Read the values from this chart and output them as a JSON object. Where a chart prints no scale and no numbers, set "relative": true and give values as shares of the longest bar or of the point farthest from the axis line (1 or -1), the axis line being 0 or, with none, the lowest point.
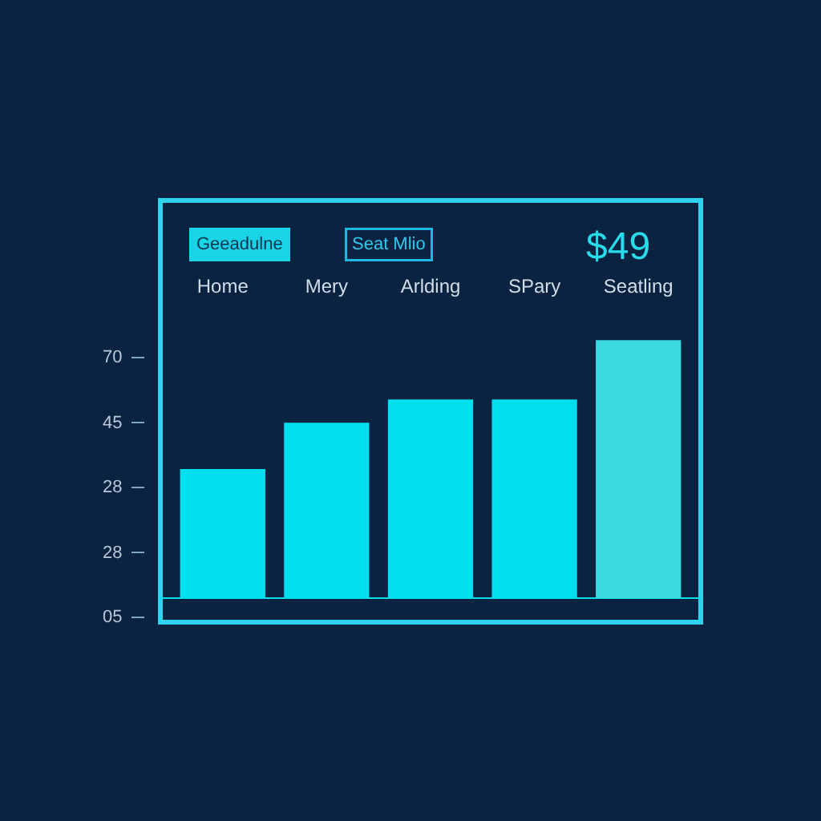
{
  "chart_data": {
    "type": "bar",
    "categories": [
      "Home",
      "Mery",
      "Arlding",
      "SPary",
      "Seatling"
    ],
    "values": [
      0.5,
      0.68,
      0.77,
      0.77,
      1
    ],
    "relative": true,
    "colors": [
      "#00dfee",
      "#00dfee",
      "#00dfee",
      "#00dfee",
      "#3ad9e2"
    ],
    "annotations": [
      "Geeadulne",
      "Seat Mlio",
      "$49",
      "70",
      "45",
      "28",
      "28",
      "05"
    ],
    "legend": false
  }
}
